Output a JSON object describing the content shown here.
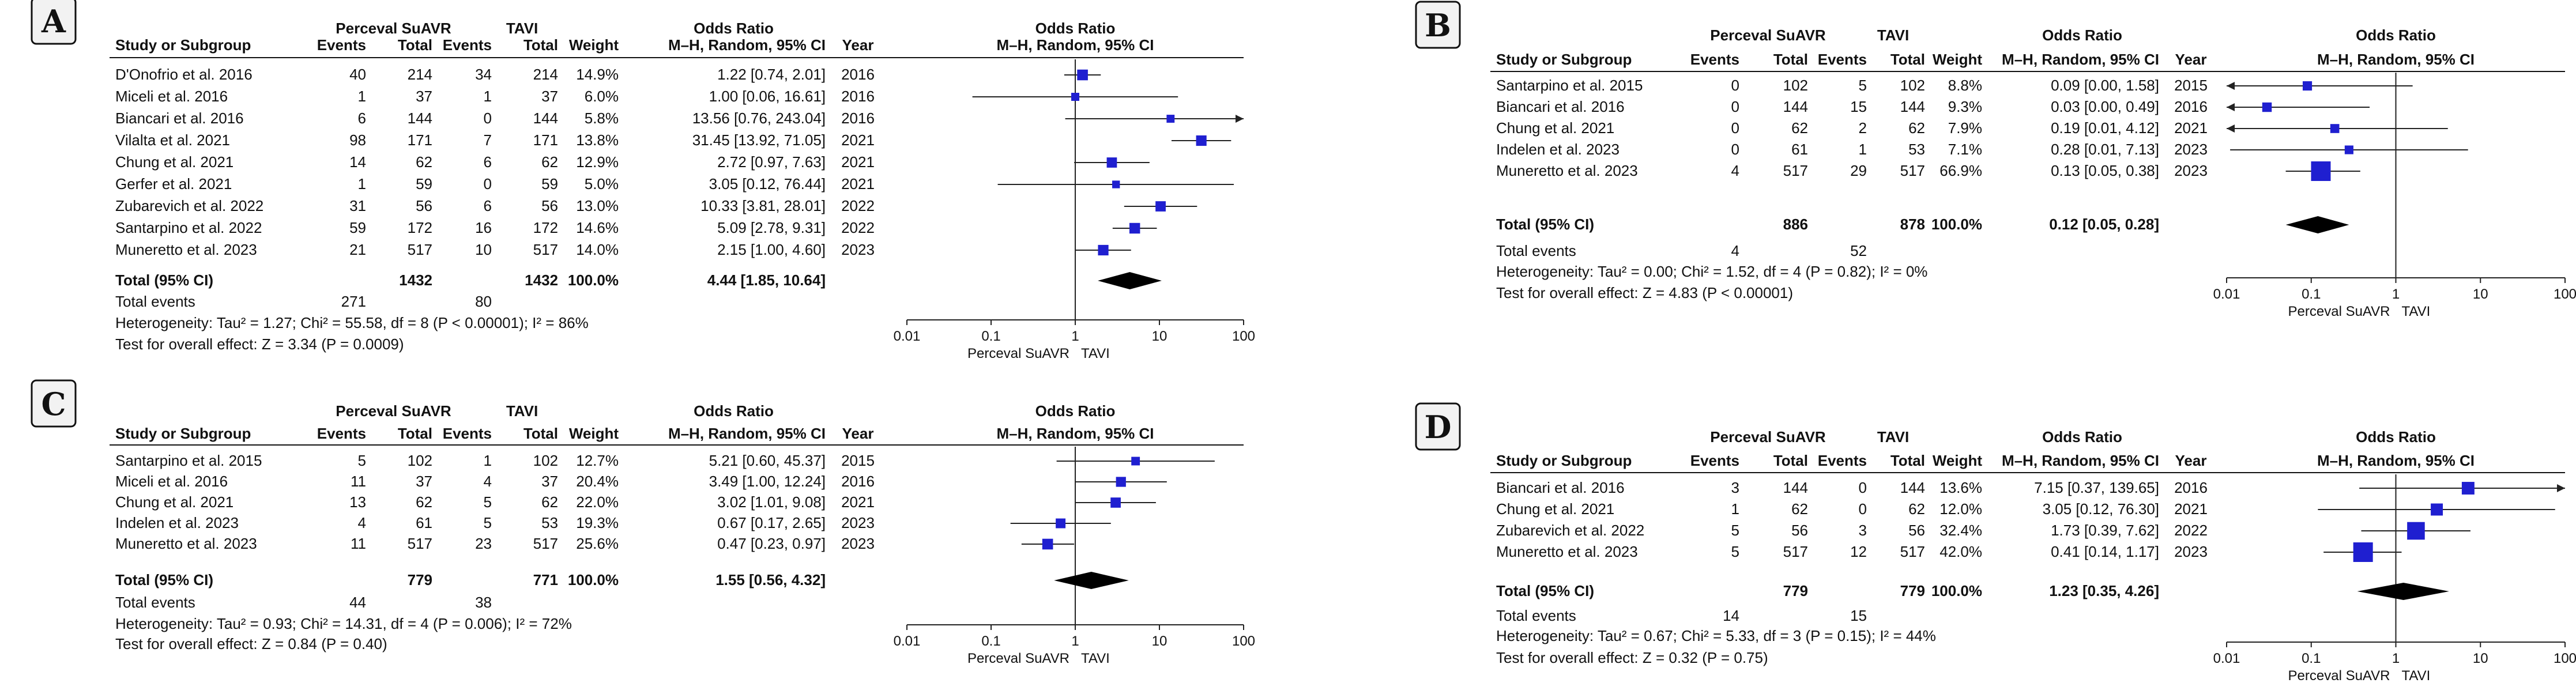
{
  "figure": {
    "colors": {
      "ink": "#111111",
      "marker": "#1f1fd0",
      "diamond": "#000000",
      "line": "#222222"
    },
    "axis_ticks": [
      "0.01",
      "0.1",
      "1",
      "10",
      "100"
    ],
    "axis_caption_left": "Perceval SuAVR",
    "axis_caption_right": "TAVI"
  },
  "headers": {
    "group_left": "Perceval SuAVR",
    "group_right": "TAVI",
    "study": "Study or Subgroup",
    "events": "Events",
    "total": "Total",
    "weight": "Weight",
    "or_title": "Odds Ratio",
    "or_sub": "M–H, Random, 95% CI",
    "year": "Year",
    "plot_title": "Odds Ratio",
    "plot_sub": "M–H, Random, 95% CI",
    "total_events_label": "Total events"
  },
  "chart_data": [
    {
      "type": "forest",
      "panel": "A",
      "scale": "log",
      "xlim": [
        0.01,
        100
      ],
      "studies": [
        {
          "name": "D'Onofrio et al. 2016",
          "e1": "40",
          "n1": "214",
          "e2": "34",
          "n2": "214",
          "weight": "14.9%",
          "ci_text": "1.22 [0.74, 2.01]",
          "year": "2016",
          "or": 1.22,
          "lo": 0.74,
          "hi": 2.01,
          "w": 14.9
        },
        {
          "name": "Miceli et al. 2016",
          "e1": "1",
          "n1": "37",
          "e2": "1",
          "n2": "37",
          "weight": "6.0%",
          "ci_text": "1.00 [0.06, 16.61]",
          "year": "2016",
          "or": 1.0,
          "lo": 0.06,
          "hi": 16.61,
          "w": 6.0
        },
        {
          "name": "Biancari et al. 2016",
          "e1": "6",
          "n1": "144",
          "e2": "0",
          "n2": "144",
          "weight": "5.8%",
          "ci_text": "13.56 [0.76, 243.04]",
          "year": "2016",
          "or": 13.56,
          "lo": 0.76,
          "hi": 243.04,
          "w": 5.8
        },
        {
          "name": "Vilalta et al. 2021",
          "e1": "98",
          "n1": "171",
          "e2": "7",
          "n2": "171",
          "weight": "13.8%",
          "ci_text": "31.45 [13.92, 71.05]",
          "year": "2021",
          "or": 31.45,
          "lo": 13.92,
          "hi": 71.05,
          "w": 13.8
        },
        {
          "name": "Chung et al. 2021",
          "e1": "14",
          "n1": "62",
          "e2": "6",
          "n2": "62",
          "weight": "12.9%",
          "ci_text": "2.72 [0.97, 7.63]",
          "year": "2021",
          "or": 2.72,
          "lo": 0.97,
          "hi": 7.63,
          "w": 12.9
        },
        {
          "name": "Gerfer et al. 2021",
          "e1": "1",
          "n1": "59",
          "e2": "0",
          "n2": "59",
          "weight": "5.0%",
          "ci_text": "3.05 [0.12, 76.44]",
          "year": "2021",
          "or": 3.05,
          "lo": 0.12,
          "hi": 76.44,
          "w": 5.0
        },
        {
          "name": "Zubarevich et al. 2022",
          "e1": "31",
          "n1": "56",
          "e2": "6",
          "n2": "56",
          "weight": "13.0%",
          "ci_text": "10.33 [3.81, 28.01]",
          "year": "2022",
          "or": 10.33,
          "lo": 3.81,
          "hi": 28.01,
          "w": 13.0
        },
        {
          "name": "Santarpino et al. 2022",
          "e1": "59",
          "n1": "172",
          "e2": "16",
          "n2": "172",
          "weight": "14.6%",
          "ci_text": "5.09 [2.78, 9.31]",
          "year": "2022",
          "or": 5.09,
          "lo": 2.78,
          "hi": 9.31,
          "w": 14.6
        },
        {
          "name": "Muneretto et al. 2023",
          "e1": "21",
          "n1": "517",
          "e2": "10",
          "n2": "517",
          "weight": "14.0%",
          "ci_text": "2.15 [1.00, 4.60]",
          "year": "2023",
          "or": 2.15,
          "lo": 1.0,
          "hi": 4.6,
          "w": 14.0
        }
      ],
      "total": {
        "label": "Total (95% CI)",
        "n1": "1432",
        "n2": "1432",
        "weight": "100.0%",
        "ci_text": "4.44 [1.85, 10.64]",
        "or": 4.44,
        "lo": 1.85,
        "hi": 10.64
      },
      "total_events": {
        "e1": "271",
        "e2": "80"
      },
      "heterogeneity": "Heterogeneity: Tau² = 1.27; Chi² = 55.58, df = 8 (P < 0.00001); I² = 86%",
      "overall": "Test for overall effect: Z = 3.34 (P = 0.0009)"
    },
    {
      "type": "forest",
      "panel": "B",
      "scale": "log",
      "xlim": [
        0.01,
        100
      ],
      "studies": [
        {
          "name": "Santarpino et al. 2015",
          "e1": "0",
          "n1": "102",
          "e2": "5",
          "n2": "102",
          "weight": "8.8%",
          "ci_text": "0.09 [0.00, 1.58]",
          "year": "2015",
          "or": 0.09,
          "lo": 0.004,
          "hi": 1.58,
          "w": 8.8
        },
        {
          "name": "Biancari et al. 2016",
          "e1": "0",
          "n1": "144",
          "e2": "15",
          "n2": "144",
          "weight": "9.3%",
          "ci_text": "0.03 [0.00, 0.49]",
          "year": "2016",
          "or": 0.03,
          "lo": 0.001,
          "hi": 0.49,
          "w": 9.3
        },
        {
          "name": "Chung et al. 2021",
          "e1": "0",
          "n1": "62",
          "e2": "2",
          "n2": "62",
          "weight": "7.9%",
          "ci_text": "0.19 [0.01, 4.12]",
          "year": "2021",
          "or": 0.19,
          "lo": 0.009,
          "hi": 4.12,
          "w": 7.9
        },
        {
          "name": "Indelen et al. 2023",
          "e1": "0",
          "n1": "61",
          "e2": "1",
          "n2": "53",
          "weight": "7.1%",
          "ci_text": "0.28 [0.01, 7.13]",
          "year": "2023",
          "or": 0.28,
          "lo": 0.011,
          "hi": 7.13,
          "w": 7.1
        },
        {
          "name": "Muneretto et al. 2023",
          "e1": "4",
          "n1": "517",
          "e2": "29",
          "n2": "517",
          "weight": "66.9%",
          "ci_text": "0.13 [0.05, 0.38]",
          "year": "2023",
          "or": 0.13,
          "lo": 0.05,
          "hi": 0.38,
          "w": 66.9
        }
      ],
      "total": {
        "label": "Total (95% CI)",
        "n1": "886",
        "n2": "878",
        "weight": "100.0%",
        "ci_text": "0.12 [0.05, 0.28]",
        "or": 0.12,
        "lo": 0.05,
        "hi": 0.28
      },
      "total_events": {
        "e1": "4",
        "e2": "52"
      },
      "heterogeneity": "Heterogeneity: Tau² = 0.00; Chi² = 1.52, df = 4 (P = 0.82); I² = 0%",
      "overall": "Test for overall effect: Z = 4.83 (P < 0.00001)"
    },
    {
      "type": "forest",
      "panel": "C",
      "scale": "log",
      "xlim": [
        0.01,
        100
      ],
      "studies": [
        {
          "name": "Santarpino et al. 2015",
          "e1": "5",
          "n1": "102",
          "e2": "1",
          "n2": "102",
          "weight": "12.7%",
          "ci_text": "5.21 [0.60, 45.37]",
          "year": "2015",
          "or": 5.21,
          "lo": 0.6,
          "hi": 45.37,
          "w": 12.7
        },
        {
          "name": "Miceli et al. 2016",
          "e1": "11",
          "n1": "37",
          "e2": "4",
          "n2": "37",
          "weight": "20.4%",
          "ci_text": "3.49 [1.00, 12.24]",
          "year": "2016",
          "or": 3.49,
          "lo": 1.0,
          "hi": 12.24,
          "w": 20.4
        },
        {
          "name": "Chung et al. 2021",
          "e1": "13",
          "n1": "62",
          "e2": "5",
          "n2": "62",
          "weight": "22.0%",
          "ci_text": "3.02 [1.01, 9.08]",
          "year": "2021",
          "or": 3.02,
          "lo": 1.01,
          "hi": 9.08,
          "w": 22.0
        },
        {
          "name": "Indelen et al. 2023",
          "e1": "4",
          "n1": "61",
          "e2": "5",
          "n2": "53",
          "weight": "19.3%",
          "ci_text": "0.67 [0.17, 2.65]",
          "year": "2023",
          "or": 0.67,
          "lo": 0.17,
          "hi": 2.65,
          "w": 19.3
        },
        {
          "name": "Muneretto et al. 2023",
          "e1": "11",
          "n1": "517",
          "e2": "23",
          "n2": "517",
          "weight": "25.6%",
          "ci_text": "0.47 [0.23, 0.97]",
          "year": "2023",
          "or": 0.47,
          "lo": 0.23,
          "hi": 0.97,
          "w": 25.6
        }
      ],
      "total": {
        "label": "Total (95% CI)",
        "n1": "779",
        "n2": "771",
        "weight": "100.0%",
        "ci_text": "1.55 [0.56, 4.32]",
        "or": 1.55,
        "lo": 0.56,
        "hi": 4.32
      },
      "total_events": {
        "e1": "44",
        "e2": "38"
      },
      "heterogeneity": "Heterogeneity: Tau² = 0.93; Chi² = 14.31, df = 4 (P = 0.006); I² = 72%",
      "overall": "Test for overall effect: Z = 0.84 (P = 0.40)"
    },
    {
      "type": "forest",
      "panel": "D",
      "scale": "log",
      "xlim": [
        0.01,
        100
      ],
      "studies": [
        {
          "name": "Biancari et al. 2016",
          "e1": "3",
          "n1": "144",
          "e2": "0",
          "n2": "144",
          "weight": "13.6%",
          "ci_text": "7.15 [0.37, 139.65]",
          "year": "2016",
          "or": 7.15,
          "lo": 0.37,
          "hi": 139.65,
          "w": 13.6
        },
        {
          "name": "Chung et al. 2021",
          "e1": "1",
          "n1": "62",
          "e2": "0",
          "n2": "62",
          "weight": "12.0%",
          "ci_text": "3.05 [0.12, 76.30]",
          "year": "2021",
          "or": 3.05,
          "lo": 0.12,
          "hi": 76.3,
          "w": 12.0
        },
        {
          "name": "Zubarevich et al. 2022",
          "e1": "5",
          "n1": "56",
          "e2": "3",
          "n2": "56",
          "weight": "32.4%",
          "ci_text": "1.73 [0.39, 7.62]",
          "year": "2022",
          "or": 1.73,
          "lo": 0.39,
          "hi": 7.62,
          "w": 32.4
        },
        {
          "name": "Muneretto et al. 2023",
          "e1": "5",
          "n1": "517",
          "e2": "12",
          "n2": "517",
          "weight": "42.0%",
          "ci_text": "0.41 [0.14, 1.17]",
          "year": "2023",
          "or": 0.41,
          "lo": 0.14,
          "hi": 1.17,
          "w": 42.0
        }
      ],
      "total": {
        "label": "Total (95% CI)",
        "n1": "779",
        "n2": "779",
        "weight": "100.0%",
        "ci_text": "1.23 [0.35, 4.26]",
        "or": 1.23,
        "lo": 0.35,
        "hi": 4.26
      },
      "total_events": {
        "e1": "14",
        "e2": "15"
      },
      "heterogeneity": "Heterogeneity: Tau² = 0.67; Chi² = 5.33, df = 3 (P = 0.15); I² = 44%",
      "overall": "Test for overall effect: Z = 0.32 (P = 0.75)"
    }
  ]
}
